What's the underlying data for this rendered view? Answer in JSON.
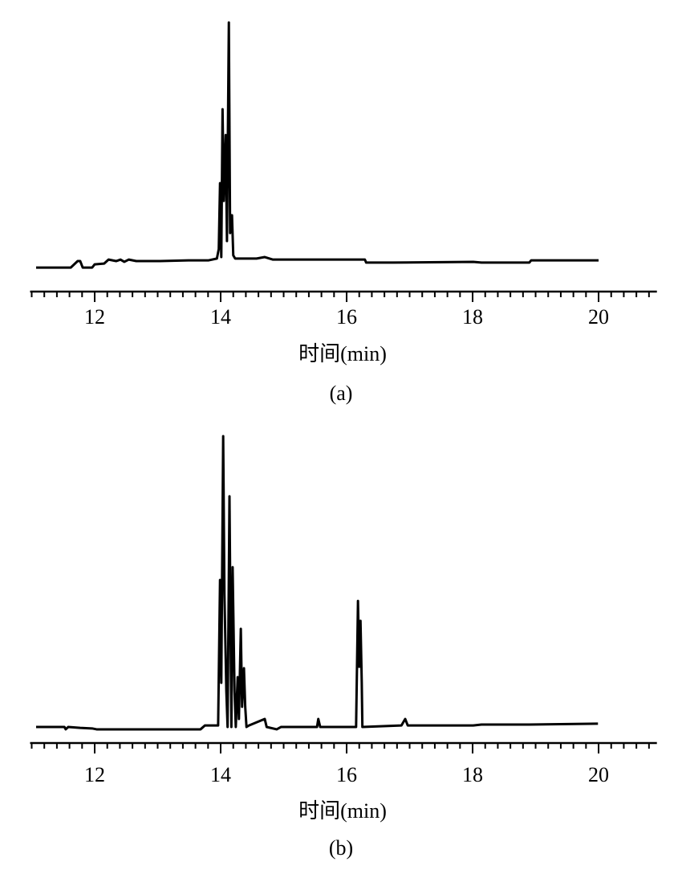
{
  "chart_data": [
    {
      "type": "line",
      "color": "#000000",
      "xlabel": "时间(min)",
      "caption": "(a)",
      "x": [
        11.07,
        11.62,
        11.73,
        11.77,
        11.81,
        11.96,
        12.0,
        12.15,
        12.22,
        12.34,
        12.41,
        12.47,
        12.54,
        12.66,
        13.04,
        13.49,
        13.81,
        13.94,
        13.97,
        13.99,
        14.01,
        14.03,
        14.05,
        14.08,
        14.1,
        14.13,
        14.15,
        14.18,
        14.2,
        14.23,
        14.57,
        14.7,
        14.83,
        15.46,
        16.29,
        16.31,
        16.74,
        18.01,
        18.14,
        18.9,
        18.93,
        20.0
      ],
      "values": [
        2.2,
        2.2,
        4.8,
        4.8,
        2.2,
        2.2,
        3.5,
        3.8,
        5.4,
        4.8,
        5.4,
        4.5,
        5.4,
        4.8,
        4.8,
        5.1,
        5.1,
        5.8,
        9.6,
        35.9,
        6.4,
        65.4,
        28.8,
        55.1,
        12.8,
        100,
        16,
        23.1,
        7.1,
        5.8,
        5.8,
        6.4,
        5.4,
        5.4,
        5.4,
        4.2,
        4.2,
        4.5,
        4.2,
        4.2,
        5.1,
        5.1
      ],
      "xlim": [
        11,
        20.9
      ],
      "ylim": [
        0,
        100
      ],
      "xticks": [
        12,
        14,
        16,
        18,
        20
      ],
      "xminorticks": [
        11.0,
        11.2,
        11.4,
        11.6,
        11.8,
        12.2,
        12.4,
        12.6,
        12.8,
        13.0,
        13.2,
        13.4,
        13.6,
        13.8,
        14.2,
        14.4,
        14.6,
        14.8,
        15.0,
        15.2,
        15.4,
        15.6,
        15.8,
        16.2,
        16.4,
        16.6,
        16.8,
        17.0,
        17.2,
        17.4,
        17.6,
        17.8,
        18.2,
        18.4,
        18.6,
        18.8,
        19.0,
        19.2,
        19.4,
        19.6,
        19.8,
        20.2,
        20.4,
        20.6,
        20.8
      ]
    },
    {
      "type": "line",
      "color": "#000000",
      "xlabel": "时间(min)",
      "caption": "(b)",
      "x": [
        11.07,
        11.52,
        11.54,
        11.58,
        11.77,
        11.96,
        12.03,
        13.68,
        13.75,
        13.96,
        13.99,
        14.01,
        14.04,
        14.06,
        14.09,
        14.11,
        14.14,
        14.17,
        14.19,
        14.22,
        14.24,
        14.27,
        14.29,
        14.32,
        14.34,
        14.37,
        14.39,
        14.41,
        14.45,
        14.7,
        14.73,
        14.89,
        14.96,
        15.53,
        15.55,
        15.58,
        16.15,
        16.18,
        16.2,
        16.22,
        16.24,
        16.25,
        16.87,
        16.93,
        16.97,
        18.01,
        18.14,
        18.9,
        19.99
      ],
      "values": [
        1.9,
        1.9,
        1.1,
        1.9,
        1.6,
        1.4,
        1.1,
        1.1,
        2.4,
        2.4,
        51.5,
        16.8,
        100,
        46.6,
        14.1,
        1.9,
        79.7,
        1.9,
        55.8,
        14.1,
        1.9,
        18.7,
        4.6,
        35,
        8.7,
        21.7,
        8.7,
        1.9,
        2.4,
        4.6,
        1.9,
        1.1,
        1.9,
        1.9,
        4.6,
        1.9,
        1.9,
        44.4,
        22.2,
        37.7,
        16.8,
        1.9,
        2.4,
        4.6,
        2.4,
        2.4,
        2.7,
        2.7,
        3.0
      ],
      "xlim": [
        11,
        20.9
      ],
      "ylim": [
        0,
        100
      ],
      "xticks": [
        12,
        14,
        16,
        18,
        20
      ],
      "xminorticks": [
        11.0,
        11.2,
        11.4,
        11.6,
        11.8,
        12.2,
        12.4,
        12.6,
        12.8,
        13.0,
        13.2,
        13.4,
        13.6,
        13.8,
        14.2,
        14.4,
        14.6,
        14.8,
        15.0,
        15.2,
        15.4,
        15.6,
        15.8,
        16.2,
        16.4,
        16.6,
        16.8,
        17.0,
        17.2,
        17.4,
        17.6,
        17.8,
        18.2,
        18.4,
        18.6,
        18.8,
        19.0,
        19.2,
        19.4,
        19.6,
        19.8,
        20.2,
        20.4,
        20.6,
        20.8
      ]
    }
  ]
}
